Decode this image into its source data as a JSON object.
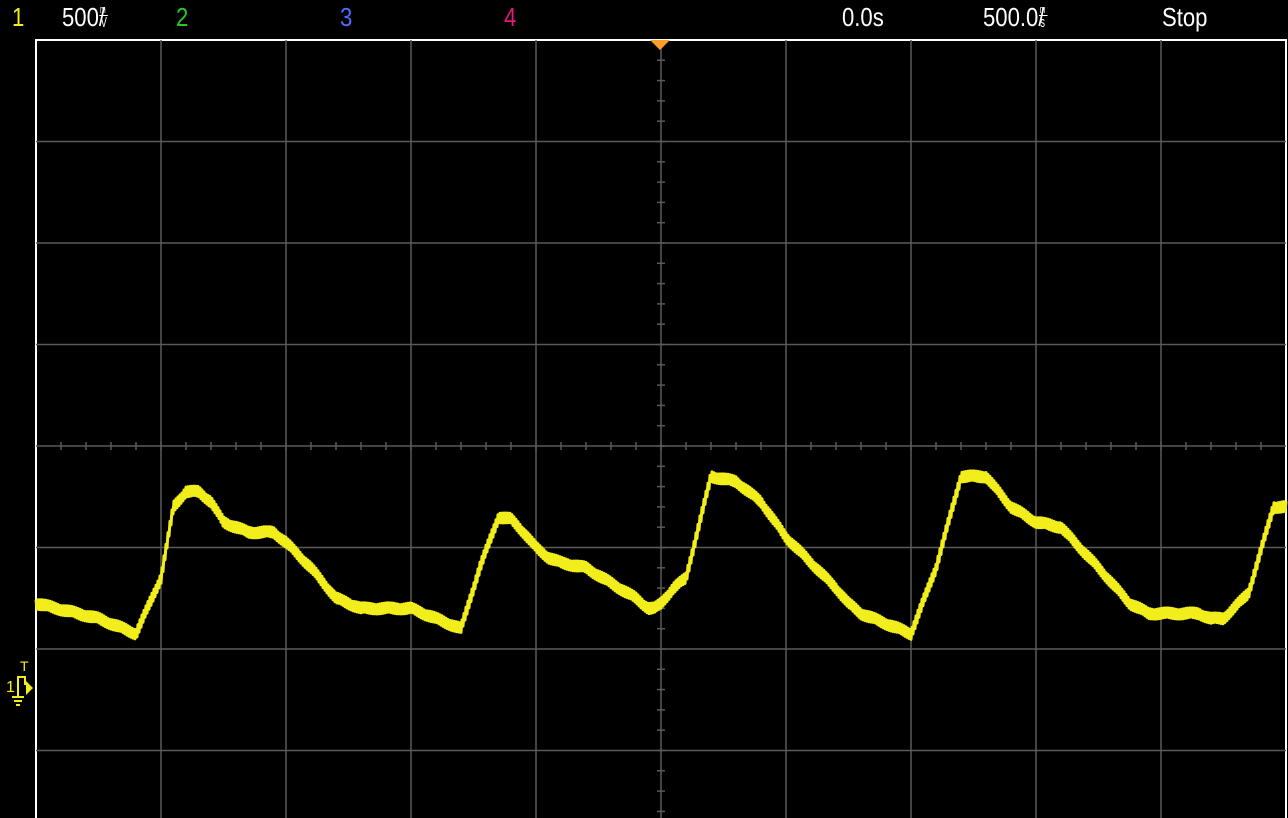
{
  "header": {
    "ch1_label": "1",
    "ch1_scale_value": "500",
    "ch1_scale_unit_num": "m",
    "ch1_scale_unit_den": "V",
    "ch1_scale_slash": "/",
    "ch2_label": "2",
    "ch3_label": "3",
    "ch4_label": "4",
    "time_position": "0.0s",
    "timebase_value": "500.0",
    "timebase_unit_num": "m",
    "timebase_unit_den": "s",
    "timebase_slash": "/",
    "run_status": "Stop"
  },
  "trigger_marker": {
    "label_t": "T",
    "label_channel": "1"
  },
  "colors": {
    "ch1": "#f2ee1c",
    "ch2": "#22cc22",
    "ch3": "#4f6cff",
    "ch4": "#e5197a",
    "grid": "#5a5a5a",
    "text": "#ffffff",
    "trigger": "#ff9d2a"
  },
  "chart_data": {
    "type": "line",
    "grid": true,
    "x_divisions": 10,
    "y_divisions": 8,
    "x_range_div": [
      -5,
      5
    ],
    "y_range_div": [
      -4,
      4
    ],
    "series": [
      {
        "channel": "1",
        "x_div": [
          -5.0,
          -4.5,
          -4.2,
          -4.0,
          -3.9,
          -3.8,
          -3.7,
          -3.6,
          -3.5,
          -3.3,
          -3.1,
          -3.0,
          -2.8,
          -2.6,
          -2.4,
          -2.2,
          -2.0,
          -1.6,
          -1.45,
          -1.3,
          -1.2,
          -1.1,
          -1.0,
          -0.9,
          -0.8,
          -0.6,
          -0.4,
          -0.2,
          -0.1,
          -0.05,
          0.0,
          0.1,
          0.2,
          0.4,
          0.6,
          0.8,
          1.0,
          1.2,
          1.4,
          1.5,
          1.6,
          1.7,
          1.8,
          1.9,
          2.0,
          2.2,
          2.4,
          2.6,
          2.8,
          3.0,
          3.2,
          3.5,
          3.75,
          3.9,
          4.0,
          4.1,
          4.2,
          4.3,
          4.4,
          4.5,
          4.7,
          4.9,
          5.0
        ],
        "y_div": [
          -1.55,
          -1.7,
          -1.85,
          -1.3,
          -0.6,
          -0.45,
          -0.45,
          -0.55,
          -0.75,
          -0.85,
          -0.85,
          -0.95,
          -1.2,
          -1.5,
          -1.6,
          -1.6,
          -1.6,
          -1.8,
          -1.2,
          -0.7,
          -0.72,
          -0.85,
          -1.0,
          -1.1,
          -1.15,
          -1.2,
          -1.35,
          -1.5,
          -1.6,
          -1.6,
          -1.55,
          -1.4,
          -1.3,
          -0.3,
          -0.35,
          -0.55,
          -0.9,
          -1.15,
          -1.4,
          -1.55,
          -1.65,
          -1.7,
          -1.75,
          -1.8,
          -1.85,
          -1.2,
          -0.3,
          -0.3,
          -0.6,
          -0.75,
          -0.8,
          -1.2,
          -1.55,
          -1.65,
          -1.65,
          -1.65,
          -1.65,
          -1.65,
          -1.7,
          -1.7,
          -1.45,
          -0.6,
          -0.6
        ]
      }
    ]
  }
}
